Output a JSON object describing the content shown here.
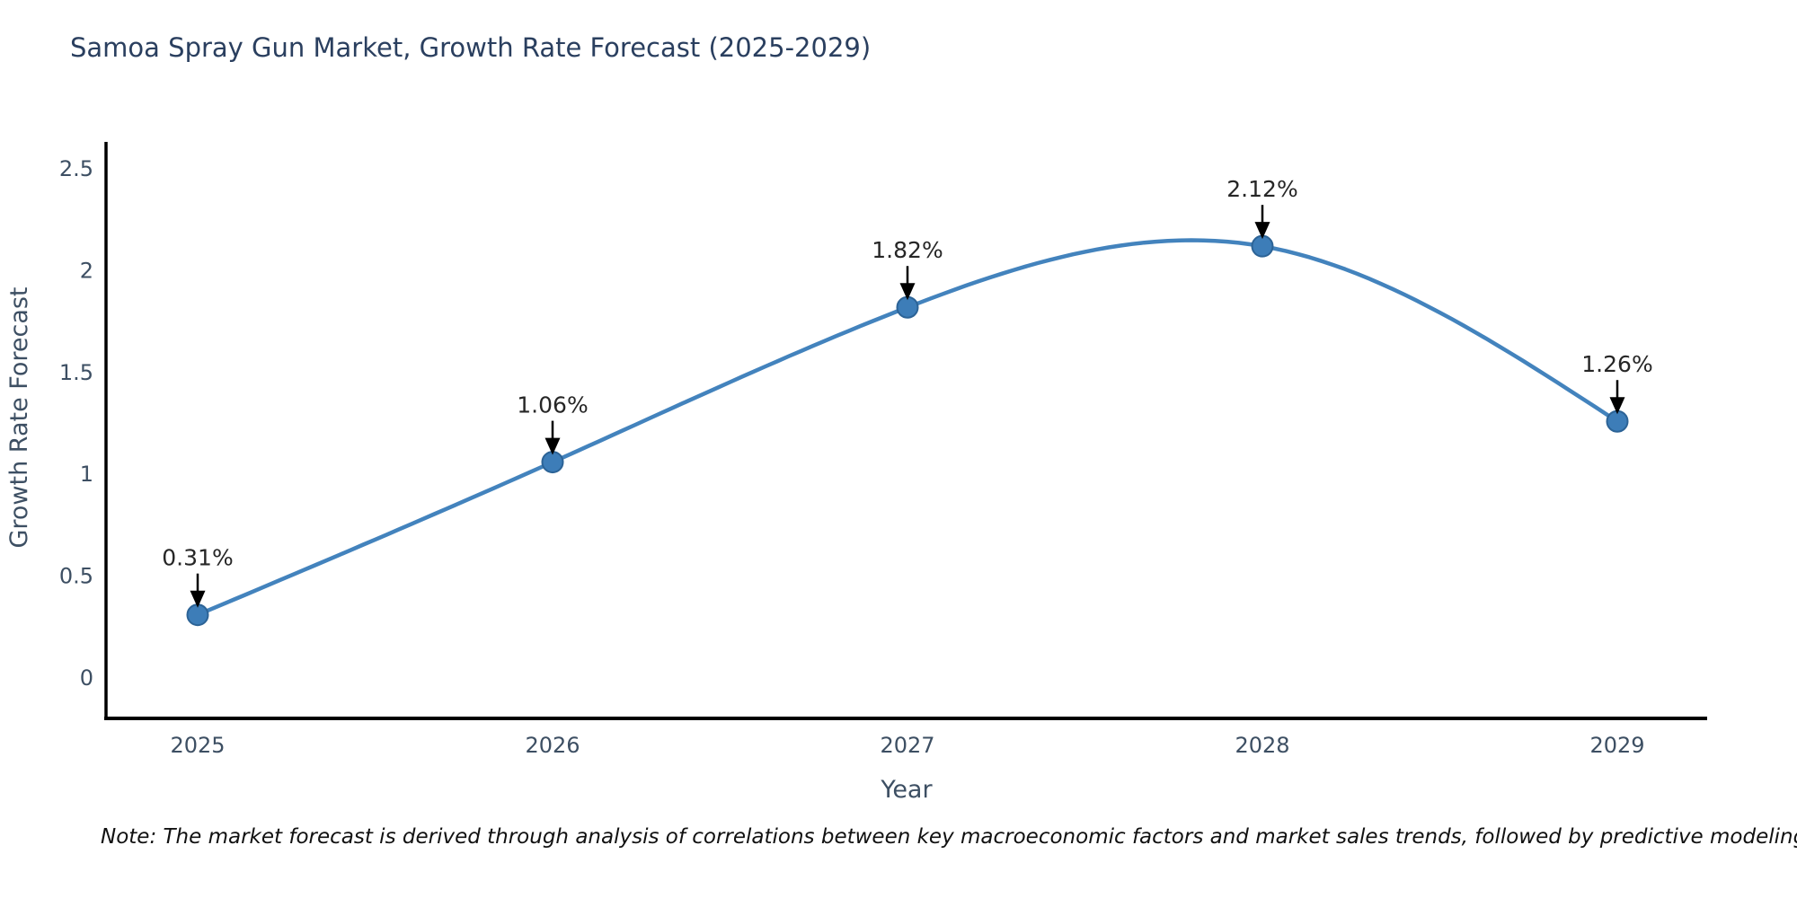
{
  "title": "Samoa Spray Gun Market, Growth Rate Forecast (2025-2029)",
  "note": "Note: The market forecast is derived through analysis of correlations between key macroeconomic factors and market sales trends, followed by predictive modeling to project future sales",
  "chart_data": {
    "type": "line",
    "title": "Samoa Spray Gun Market, Growth Rate Forecast (2025-2029)",
    "xlabel": "Year",
    "ylabel": "Growth Rate Forecast",
    "categories": [
      "2025",
      "2026",
      "2027",
      "2028",
      "2029"
    ],
    "x": [
      2025,
      2026,
      2027,
      2028,
      2029
    ],
    "series": [
      {
        "name": "Growth Rate Forecast",
        "values": [
          0.31,
          1.06,
          1.82,
          2.12,
          1.26
        ],
        "point_labels": [
          "0.31%",
          "1.06%",
          "1.82%",
          "2.12%",
          "1.26%"
        ]
      }
    ],
    "yticks": [
      0,
      0.5,
      1,
      1.5,
      2,
      2.5
    ],
    "ylim": [
      -0.2,
      2.62
    ],
    "xlim": [
      2024.74,
      2029.25
    ],
    "grid": false,
    "legend_position": "none",
    "line_smooth": true,
    "marker_style": "circle",
    "annotation_arrows": true,
    "colors": {
      "line": "#4383bd",
      "marker_fill": "#3d7db8",
      "marker_edge": "#2c6396",
      "arrow": "#000000",
      "title_text": "#2a3f5f",
      "axis_text": "#3d4f63",
      "axis_line": "#000000",
      "annotation_text": "#262626",
      "note_text": "#111111",
      "background": "#ffffff"
    }
  }
}
